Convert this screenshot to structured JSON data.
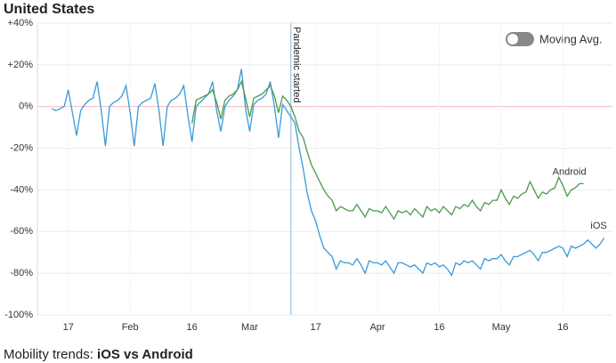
{
  "chart_data": {
    "type": "line",
    "title": "United States",
    "footer": {
      "prefix": "Mobility trends:",
      "emphasis": "iOS vs Android"
    },
    "toggle": {
      "label": "Moving Avg.",
      "on": false
    },
    "annotations": [
      {
        "x": 71,
        "label": "Pandemic started"
      }
    ],
    "x": [
      13,
      14,
      15,
      16,
      17,
      18,
      19,
      20,
      21,
      22,
      23,
      24,
      25,
      26,
      27,
      28,
      29,
      30,
      31,
      32,
      33,
      34,
      35,
      36,
      37,
      38,
      39,
      40,
      41,
      42,
      43,
      44,
      45,
      46,
      47,
      48,
      49,
      50,
      51,
      52,
      53,
      54,
      55,
      56,
      57,
      58,
      59,
      60,
      61,
      62,
      63,
      64,
      65,
      66,
      67,
      68,
      69,
      70,
      71,
      72,
      73,
      74,
      75,
      76,
      77,
      78,
      79,
      80,
      81,
      82,
      83,
      84,
      85,
      86,
      87,
      88,
      89,
      90,
      91,
      92,
      93,
      94,
      95,
      96,
      97,
      98,
      99,
      100,
      101,
      102,
      103,
      104,
      105,
      106,
      107,
      108,
      109,
      110,
      111,
      112,
      113,
      114,
      115,
      116,
      117,
      118,
      119,
      120,
      121,
      122,
      123,
      124,
      125,
      126,
      127,
      128,
      129,
      130,
      131,
      132,
      133,
      134,
      135,
      136,
      137,
      138,
      139,
      140,
      141,
      142,
      143,
      144,
      145,
      146,
      147
    ],
    "xlim": [
      9.5,
      149
    ],
    "xticks": [
      {
        "value": 17,
        "label": "17"
      },
      {
        "value": 32,
        "label": "Feb"
      },
      {
        "value": 47,
        "label": "16"
      },
      {
        "value": 61,
        "label": "Mar"
      },
      {
        "value": 77,
        "label": "17"
      },
      {
        "value": 92,
        "label": "Apr"
      },
      {
        "value": 107,
        "label": "16"
      },
      {
        "value": 122,
        "label": "May"
      },
      {
        "value": 137,
        "label": "16"
      }
    ],
    "ylim": [
      -100,
      40
    ],
    "yticks": [
      {
        "value": 40,
        "label": "+40%"
      },
      {
        "value": 20,
        "label": "+20%"
      },
      {
        "value": 0,
        "label": "0%"
      },
      {
        "value": -20,
        "label": "-20%"
      },
      {
        "value": -40,
        "label": "-40%"
      },
      {
        "value": -60,
        "label": "-60%"
      },
      {
        "value": -80,
        "label": "-80%"
      },
      {
        "value": -100,
        "label": "-100%"
      }
    ],
    "grid": true,
    "series": [
      {
        "name": "iOS",
        "color": "#3a9ad9",
        "values": [
          -1,
          -2,
          -1,
          0,
          8,
          -3,
          -14,
          -2,
          1,
          3,
          4,
          12,
          -2,
          -19,
          0,
          2,
          3,
          5,
          10,
          -3,
          -19,
          0,
          2,
          3,
          4,
          11,
          -2,
          -19,
          0,
          3,
          4,
          6,
          10,
          -4,
          -17,
          0,
          2,
          4,
          6,
          12,
          -2,
          -12,
          0,
          3,
          5,
          8,
          18,
          -1,
          -12,
          1,
          3,
          4,
          6,
          12,
          0,
          -15,
          1,
          -2,
          -5,
          -8,
          -20,
          -30,
          -42,
          -50,
          -55,
          -62,
          -68,
          -70,
          -72,
          -78,
          -74,
          -75,
          -75,
          -76,
          -73,
          -76,
          -80,
          -74,
          -75,
          -75,
          -76,
          -74,
          -77,
          -80,
          -75,
          -75,
          -76,
          -77,
          -76,
          -78,
          -80,
          -75,
          -76,
          -75,
          -77,
          -76,
          -78,
          -81,
          -75,
          -76,
          -74,
          -75,
          -74,
          -76,
          -78,
          -73,
          -74,
          -73,
          -73,
          -71,
          -74,
          -76,
          -72,
          -72,
          -71,
          -70,
          -69,
          -71,
          -74,
          -70,
          -70,
          -69,
          -68,
          -67,
          -68,
          -72,
          -67,
          -68,
          -67,
          -66,
          -64,
          -66,
          -68,
          -66,
          -63
        ]
      },
      {
        "name": "Android",
        "color": "#4a9a4a",
        "values": [
          null,
          null,
          null,
          null,
          null,
          null,
          null,
          null,
          null,
          null,
          null,
          null,
          null,
          null,
          null,
          null,
          null,
          null,
          null,
          null,
          null,
          null,
          null,
          null,
          null,
          null,
          null,
          null,
          null,
          null,
          null,
          null,
          null,
          null,
          -8,
          3,
          4,
          5,
          6,
          8,
          2,
          -6,
          3,
          5,
          6,
          8,
          12,
          4,
          -5,
          4,
          5,
          6,
          8,
          10,
          5,
          -3,
          5,
          3,
          0,
          -5,
          -12,
          -15,
          -22,
          -28,
          -32,
          -36,
          -40,
          -43,
          -45,
          -50,
          -48,
          -49,
          -50,
          -50,
          -47,
          -50,
          -53,
          -49,
          -50,
          -50,
          -51,
          -48,
          -51,
          -54,
          -50,
          -51,
          -50,
          -52,
          -49,
          -51,
          -53,
          -48,
          -50,
          -49,
          -51,
          -48,
          -50,
          -52,
          -48,
          -49,
          -47,
          -48,
          -45,
          -48,
          -50,
          -46,
          -47,
          -45,
          -45,
          -40,
          -44,
          -47,
          -43,
          -44,
          -42,
          -41,
          -36,
          -40,
          -44,
          -41,
          -42,
          -40,
          -39,
          -34,
          -38,
          -43,
          -40,
          -39,
          -37,
          -37,
          null,
          null,
          null,
          null,
          null
        ]
      }
    ]
  }
}
